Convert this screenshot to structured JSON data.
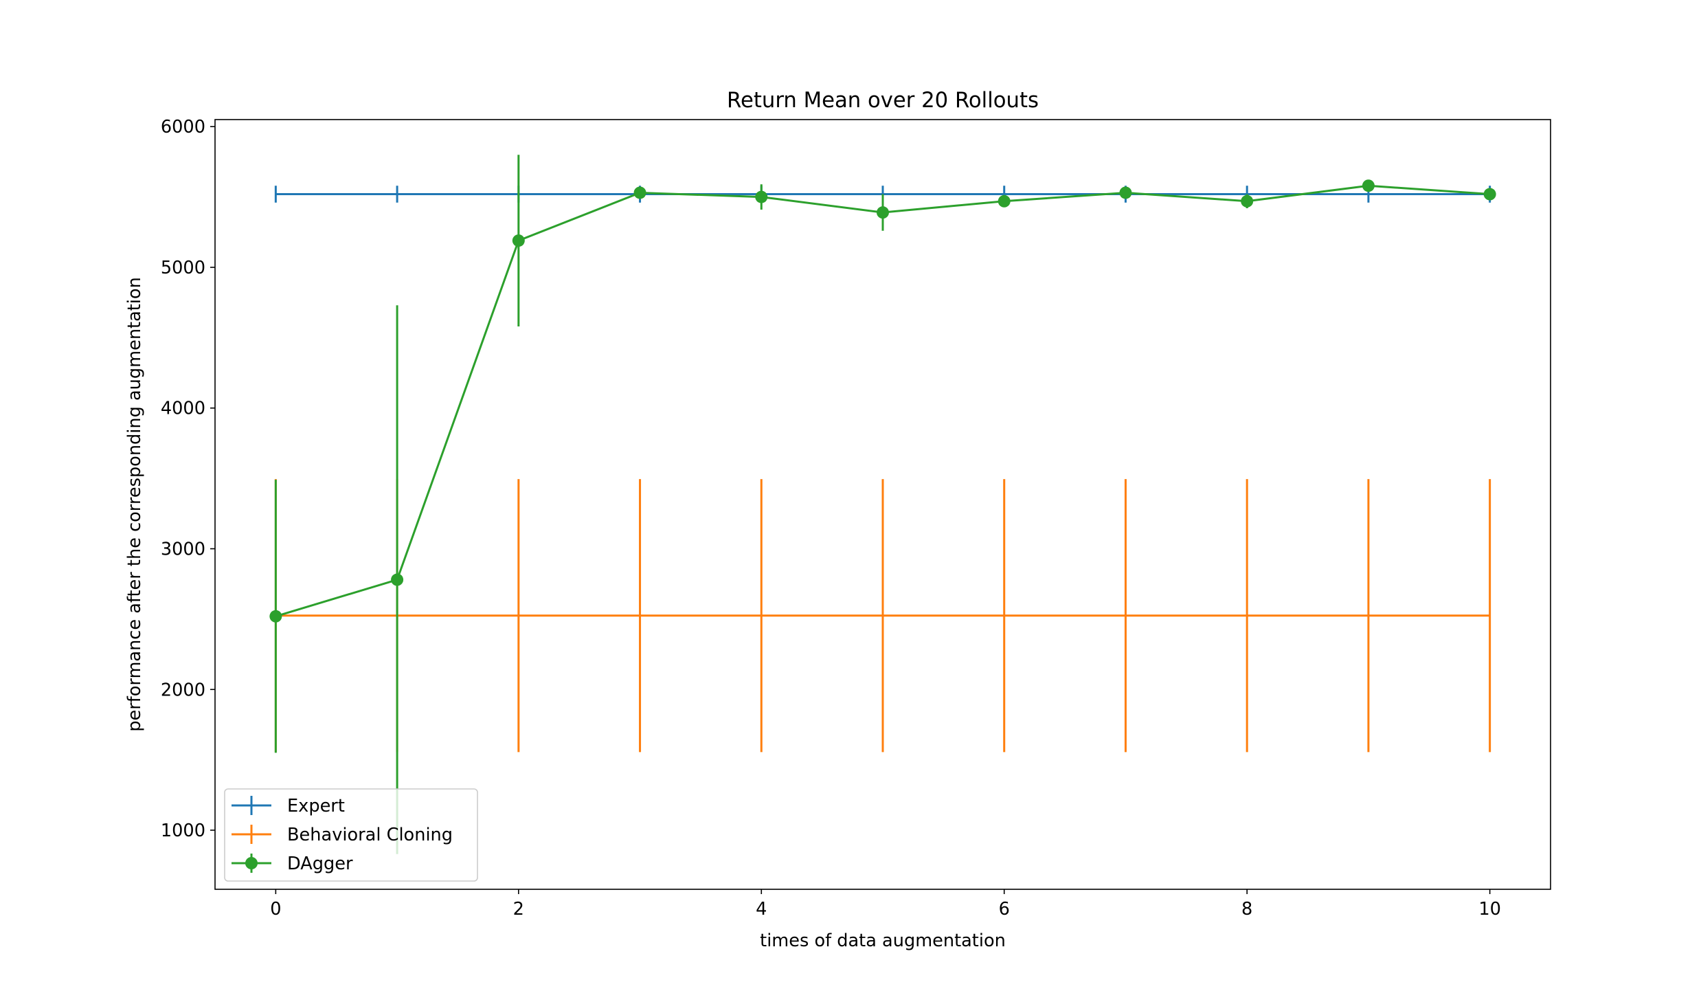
{
  "chart_data": {
    "type": "line",
    "title": "Return Mean over 20 Rollouts",
    "xlabel": "times of data augmentation",
    "ylabel": "performance after the corresponding augmentation",
    "xlim": [
      -0.5,
      10.5
    ],
    "ylim": [
      580,
      6050
    ],
    "xticks": [
      "0",
      "2",
      "4",
      "6",
      "8",
      "10"
    ],
    "yticks": [
      "1000",
      "2000",
      "3000",
      "4000",
      "5000",
      "6000"
    ],
    "legend_position": "lower-left",
    "grid": false,
    "x": [
      0,
      1,
      2,
      3,
      4,
      5,
      6,
      7,
      8,
      9,
      10
    ],
    "series": [
      {
        "name": "Expert",
        "color": "#1f77b4",
        "marker": "none",
        "values": [
          5520,
          5520,
          5520,
          5520,
          5520,
          5520,
          5520,
          5520,
          5520,
          5520,
          5520
        ],
        "errors": [
          60,
          60,
          60,
          60,
          60,
          60,
          60,
          60,
          60,
          60,
          60
        ]
      },
      {
        "name": "Behavioral Cloning",
        "color": "#ff7f0e",
        "marker": "none",
        "values": [
          2525,
          2525,
          2525,
          2525,
          2525,
          2525,
          2525,
          2525,
          2525,
          2525,
          2525
        ],
        "errors": [
          970,
          970,
          970,
          970,
          970,
          970,
          970,
          970,
          970,
          970,
          970
        ]
      },
      {
        "name": "DAgger",
        "color": "#2ca02c",
        "marker": "circle",
        "values": [
          2520,
          2780,
          5190,
          5530,
          5500,
          5390,
          5470,
          5530,
          5470,
          5580,
          5520
        ],
        "errors": [
          970,
          1950,
          610,
          30,
          90,
          130,
          40,
          30,
          50,
          40,
          40
        ]
      }
    ]
  }
}
